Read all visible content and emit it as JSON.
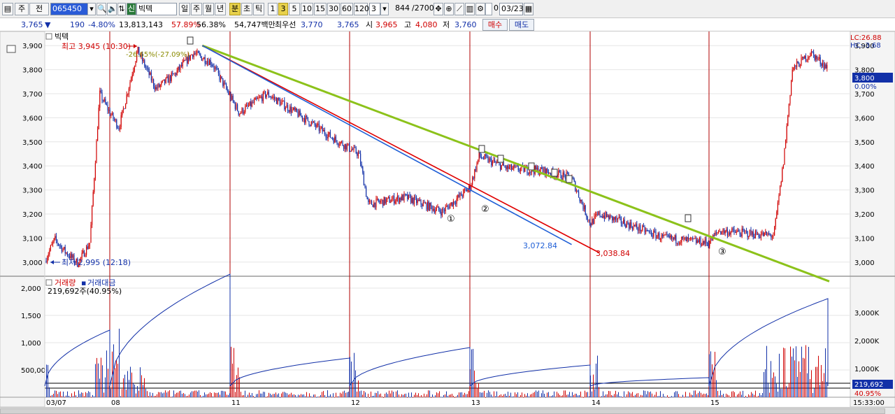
{
  "toolbar": {
    "market": "주",
    "scope": "전",
    "code": "065450",
    "market_type": "신",
    "stock_name": "빅텍",
    "periods": [
      "일",
      "주",
      "월",
      "년",
      "분",
      "초",
      "틱"
    ],
    "active_period": "분",
    "intervals": [
      "1",
      "3",
      "5",
      "10",
      "15",
      "30",
      "60",
      "120"
    ],
    "active_interval": "3",
    "interval_value": "3",
    "count": "844",
    "total": "/2700",
    "checkbox_value": "0",
    "date": "03/23"
  },
  "quote": {
    "price": "3,765",
    "change": "190",
    "change_pct": "-4.80%",
    "volume": "13,813,143",
    "volume_ratio": "57.89%",
    "turnover": "56.38%",
    "amount": "54,747백만",
    "best_label": "최우선",
    "best_ask": "3,770",
    "best_bid": "3,765",
    "open_label": "시",
    "open": "3,965",
    "high_label": "고",
    "high": "4,080",
    "low_label": "저",
    "low": "3,760",
    "buy_label": "매수",
    "sell_label": "매도"
  },
  "colors": {
    "candle_up": "#d00000",
    "candle_down": "#1230a8",
    "trend_green": "#8cc21a",
    "trend_red": "#e00000",
    "trend_blue": "#1f5fd6",
    "session_line": "#b00000"
  },
  "chart_data": [
    {
      "type": "candlestick",
      "title": "빅텍",
      "y_axis": {
        "ticks": [
          "3,000",
          "3,100",
          "3,200",
          "3,300",
          "3,400",
          "3,500",
          "3,600",
          "3,700",
          "3,800",
          "3,900"
        ],
        "range": [
          2950,
          3950
        ]
      },
      "x_ticks": [
        "03/07",
        "08",
        "11",
        "12",
        "13",
        "14",
        "15"
      ],
      "top_right": {
        "lc": "LC:26.88",
        "hc": "HC:-3.68"
      },
      "current_price": {
        "value": 3800,
        "label": "3,800",
        "pct": "0.00%"
      },
      "annotations": {
        "high": "최고 3,945 (10:30)",
        "high_pct": "-26.65%(-27.09%)",
        "low": "최저 2,995 (12:18)",
        "blue_end": "3,072.84",
        "red_end": "3,038.84",
        "circle1": "①",
        "circle2": "②",
        "circle3": "③"
      },
      "price_path": [
        [
          "03/07 09:00",
          3005
        ],
        [
          "03/07 10:00",
          3095
        ],
        [
          "03/07 11:00",
          3045
        ],
        [
          "03/07 12:18",
          2995
        ],
        [
          "03/07 13:30",
          3080
        ],
        [
          "03/07 14:30",
          3700
        ],
        [
          "03/07 15:30",
          3620
        ],
        [
          "08 09:30",
          3560
        ],
        [
          "08 10:30",
          3880
        ],
        [
          "08 11:30",
          3720
        ],
        [
          "08 12:30",
          3780
        ],
        [
          "08 13:30",
          3870
        ],
        [
          "08 14:30",
          3830
        ],
        [
          "11 09:30",
          3620
        ],
        [
          "11 11:00",
          3700
        ],
        [
          "11 13:00",
          3600
        ],
        [
          "11 14:30",
          3520
        ],
        [
          "12 09:30",
          3450
        ],
        [
          "12 10:00",
          3240
        ],
        [
          "12 12:00",
          3270
        ],
        [
          "12 14:00",
          3210
        ],
        [
          "12 15:30",
          3310
        ],
        [
          "13 09:30",
          3440
        ],
        [
          "13 11:00",
          3390
        ],
        [
          "13 13:00",
          3380
        ],
        [
          "13 14:30",
          3350
        ],
        [
          "13 15:30",
          3160
        ],
        [
          "14 09:30",
          3200
        ],
        [
          "14 11:00",
          3160
        ],
        [
          "14 13:00",
          3100
        ],
        [
          "14 15:30",
          3080
        ],
        [
          "15 09:30",
          3130
        ],
        [
          "15 11:00",
          3120
        ],
        [
          "15 12:30",
          3110
        ],
        [
          "15 13:00",
          3400
        ],
        [
          "15 13:30",
          3800
        ],
        [
          "15 14:30",
          3870
        ],
        [
          "15 15:30",
          3800
        ]
      ],
      "trend_lines": [
        {
          "color": "green",
          "from": [
            "08 14:00",
            3900
          ],
          "to": [
            "15 15:30",
            2920
          ]
        },
        {
          "color": "red",
          "from": [
            "08 14:00",
            3900
          ],
          "to": [
            "14 09:30",
            3039
          ]
        },
        {
          "color": "blue",
          "from": [
            "08 14:00",
            3900
          ],
          "to": [
            "13 14:30",
            3073
          ]
        }
      ]
    },
    {
      "type": "bar",
      "legend": [
        "거래량",
        "거래대금"
      ],
      "reading": "219,692주(40.95%)",
      "y_left_ticks": [
        "500,00",
        "1,000",
        "1,500",
        "2,000"
      ],
      "y_right_ticks": [
        "1,000K",
        "2,000K",
        "3,000K"
      ],
      "current": "219,692",
      "current_pct": "40.95%"
    }
  ],
  "time": "15:33:00"
}
